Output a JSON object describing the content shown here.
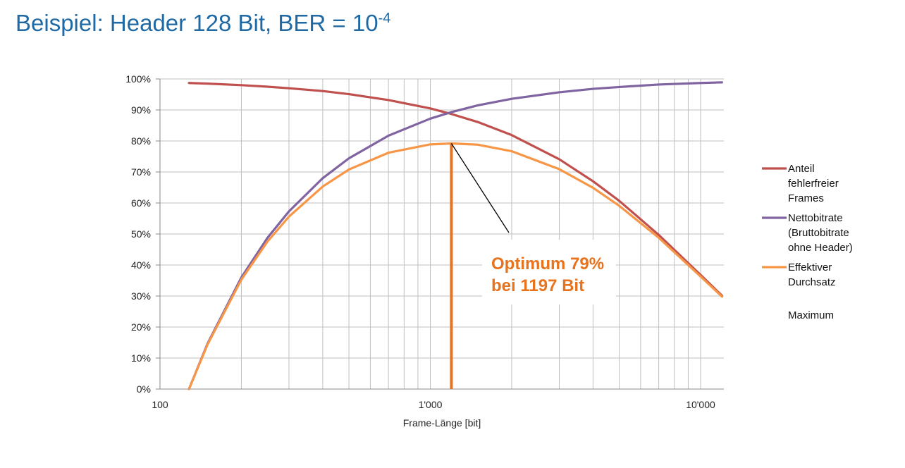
{
  "title": {
    "main": "Beispiel: Header 128 Bit, BER = 10",
    "exponent": "-4"
  },
  "chart_data": {
    "type": "line",
    "xscale": "log",
    "xlim": [
      100,
      12000
    ],
    "ylim": [
      0,
      100
    ],
    "xlabel": "Frame-Länge [bit]",
    "ylabel": "",
    "x_tick_labels": [
      {
        "value": 100,
        "label": "100"
      },
      {
        "value": 1000,
        "label": "1'000"
      },
      {
        "value": 10000,
        "label": "10'000"
      }
    ],
    "y_tick_labels": [
      "0%",
      "10%",
      "20%",
      "30%",
      "40%",
      "50%",
      "60%",
      "70%",
      "80%",
      "90%",
      "100%"
    ],
    "grid": true,
    "legend_position": "right",
    "series": [
      {
        "name": "Anteil fehlerfreier Frames",
        "legend_lines": [
          "Anteil",
          "fehlerfreier",
          "Frames"
        ],
        "color": "#c0504d",
        "x": [
          128,
          150,
          200,
          250,
          300,
          400,
          500,
          700,
          1000,
          1197,
          1500,
          2000,
          3000,
          4000,
          5000,
          7000,
          10000,
          12000
        ],
        "y": [
          98.7,
          98.5,
          98.0,
          97.5,
          97.0,
          96.1,
          95.1,
          93.2,
          90.5,
          88.7,
          86.1,
          81.9,
          74.1,
          67.0,
          60.7,
          49.7,
          36.8,
          30.1
        ]
      },
      {
        "name": "Nettobitrate (Bruttobitrate ohne Header)",
        "legend_lines": [
          "Nettobitrate",
          "(Bruttobitrate",
          "ohne Header)"
        ],
        "color": "#8064a2",
        "x": [
          128,
          150,
          200,
          250,
          300,
          400,
          500,
          700,
          1000,
          1197,
          1500,
          2000,
          3000,
          4000,
          5000,
          7000,
          10000,
          12000
        ],
        "y": [
          0,
          14.7,
          36.0,
          48.8,
          57.3,
          68.0,
          74.4,
          81.7,
          87.2,
          89.3,
          91.5,
          93.6,
          95.7,
          96.8,
          97.4,
          98.2,
          98.7,
          98.9
        ]
      },
      {
        "name": "Effektiver Durchsatz",
        "legend_lines": [
          "Effektiver",
          "Durchsatz"
        ],
        "color": "#f79646",
        "x": [
          128,
          150,
          200,
          250,
          300,
          400,
          500,
          700,
          1000,
          1197,
          1500,
          2000,
          3000,
          4000,
          5000,
          7000,
          10000,
          12000
        ],
        "y": [
          0,
          14.4,
          35.3,
          47.6,
          55.6,
          65.3,
          70.8,
          76.2,
          78.9,
          79.2,
          78.8,
          76.7,
          70.9,
          64.9,
          59.1,
          48.8,
          36.3,
          29.8
        ]
      },
      {
        "name": "Maximum",
        "legend_lines": [
          "Maximum"
        ],
        "color": "#e8731e",
        "x": [
          1197
        ],
        "y": [
          79.2
        ]
      }
    ],
    "annotation": {
      "lines": [
        "Optimum 79%",
        "bei 1197 Bit"
      ],
      "x": 1197,
      "y": 79.2
    }
  }
}
